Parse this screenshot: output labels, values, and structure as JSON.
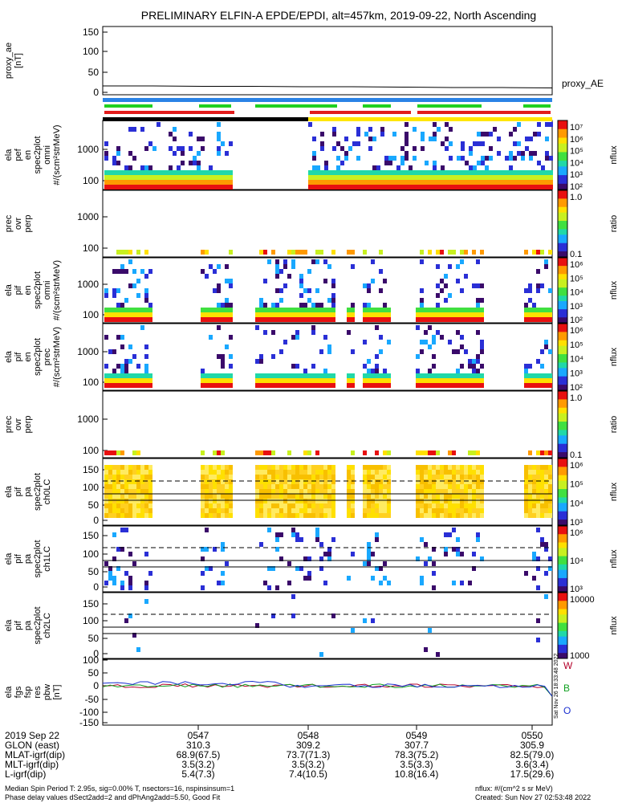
{
  "title": "PRELIMINARY ELFIN-A EPDE/EPDI, alt=457km, 2019-09-22, North Ascending",
  "colors": {
    "bar_blue": "#2a83e6",
    "bar_green": "#20d020",
    "bar_red": "#e21b1b",
    "bar_black": "#000000",
    "bar_yellow": "#ffe600",
    "line_W": "#b4002a",
    "line_B": "#10a020",
    "line_O": "#1a2fd0"
  },
  "panels": [
    {
      "id": "p0",
      "labels": [
        "proxy_ae",
        "[nT]"
      ],
      "ticks": [
        "150",
        "100",
        "50",
        "0"
      ],
      "kind": "line"
    },
    {
      "id": "p1",
      "labels": [
        "ela",
        "pef",
        "en",
        "spec2plot",
        "omni",
        "#/(scm²strMeV)"
      ],
      "ticks": [
        "1000",
        "100"
      ],
      "kind": "spec",
      "cbar": {
        "ticks": [
          "10⁷",
          "10⁶",
          "10⁵",
          "10⁴",
          "10³",
          "10²"
        ],
        "unit": "nflux"
      }
    },
    {
      "id": "p2",
      "labels": [
        "prec",
        "ovr",
        "perp"
      ],
      "ticks": [
        "1000",
        "100"
      ],
      "kind": "ratio",
      "cbar": {
        "ticks": [
          "1.0",
          "0.1"
        ],
        "unit": "ratio"
      }
    },
    {
      "id": "p3",
      "labels": [
        "ela",
        "pif",
        "en",
        "spec2plot",
        "omni",
        "#/(scm²strMeV)"
      ],
      "ticks": [
        "1000",
        "100"
      ],
      "kind": "spec",
      "cbar": {
        "ticks": [
          "10⁶",
          "10⁵",
          "10⁴",
          "10³",
          "10²"
        ],
        "unit": "nflux"
      }
    },
    {
      "id": "p4",
      "labels": [
        "ela",
        "pif",
        "en",
        "spec2plot",
        "prec",
        "#/(scm²strMeV)"
      ],
      "ticks": [
        "1000",
        "100"
      ],
      "kind": "spec",
      "cbar": {
        "ticks": [
          "10⁶",
          "10⁵",
          "10⁴",
          "10³",
          "10²"
        ],
        "unit": "nflux"
      }
    },
    {
      "id": "p5",
      "labels": [
        "prec",
        "ovr",
        "perp"
      ],
      "ticks": [
        "1000",
        "100"
      ],
      "kind": "ratio",
      "cbar": {
        "ticks": [
          "1.0",
          "0.1"
        ],
        "unit": "ratio"
      }
    },
    {
      "id": "p6",
      "labels": [
        "ela",
        "pif",
        "pa",
        "spec2plot",
        "ch0LC"
      ],
      "ticks": [
        "150",
        "100",
        "50",
        "0"
      ],
      "kind": "pa",
      "cbar": {
        "ticks": [
          "10⁶",
          "10⁵",
          "10⁴",
          "10³"
        ],
        "unit": "nflux"
      }
    },
    {
      "id": "p7",
      "labels": [
        "ela",
        "pif",
        "pa",
        "spec2plot",
        "ch1LC"
      ],
      "ticks": [
        "150",
        "100",
        "50",
        "0"
      ],
      "kind": "pa",
      "cbar": {
        "ticks": [
          "10⁶",
          "10⁴",
          "10³"
        ],
        "unit": "nflux"
      }
    },
    {
      "id": "p8",
      "labels": [
        "ela",
        "pif",
        "pa",
        "spec2plot",
        "ch2LC"
      ],
      "ticks": [
        "150",
        "100",
        "50",
        "0"
      ],
      "kind": "pa",
      "cbar": {
        "ticks": [
          "10000",
          "1000"
        ],
        "unit": "nflux"
      }
    },
    {
      "id": "p9",
      "labels": [
        "ela",
        "fgs",
        "fsp",
        "res",
        "pbw",
        "[nT]"
      ],
      "ticks": [
        "100",
        "50",
        "0",
        "-50",
        "-100",
        "-150"
      ],
      "kind": "fgs"
    }
  ],
  "right_labels": {
    "proxy": "proxy_AE",
    "W": "W",
    "B": "B",
    "O": "O",
    "stamp": "Sat Nov 26 18:33:48 2022"
  },
  "bottom_table": {
    "rows": [
      {
        "label": "2019 Sep 22",
        "values": [
          "0547",
          "0548",
          "0549",
          "0550"
        ]
      },
      {
        "label": "GLON (east)",
        "values": [
          "310.3",
          "309.2",
          "307.7",
          "305.9"
        ]
      },
      {
        "label": "MLAT-igrf(dip)",
        "values": [
          "68.9(67.5)",
          "73.7(71.3)",
          "78.3(75.2)",
          "82.5(79.0)"
        ]
      },
      {
        "label": "MLT-igrf(dip)",
        "values": [
          "3.5(3.2)",
          "3.5(3.2)",
          "3.5(3.3)",
          "3.6(3.4)"
        ]
      },
      {
        "label": "L-igrf(dip)",
        "values": [
          "5.4(7.3)",
          "7.4(10.5)",
          "10.8(16.4)",
          "17.5(29.6)"
        ]
      }
    ]
  },
  "footer": {
    "left1": "Median Spin Period T: 2.95s, sig=0.00% T, nsectors=16, nspinsinsum=1",
    "left2": "Phase delay values dSect2add=2 and dPhAng2add=5.50, Good Fit",
    "right1": "nflux: #/(cm^2 s sr MeV)",
    "right2": "Created: Sun Nov 27 02:53:48 2022"
  },
  "chart_data": {
    "type": "heatmap",
    "title": "PRELIMINARY ELFIN-A EPDE/EPDI, alt=457km, 2019-09-22, North Ascending",
    "x_ticks": [
      "0547",
      "0548",
      "0549",
      "0550"
    ],
    "series": [
      {
        "name": "proxy_AE",
        "values": [
          16,
          16,
          15,
          15,
          14,
          14,
          13,
          12,
          12,
          11
        ]
      }
    ]
  }
}
